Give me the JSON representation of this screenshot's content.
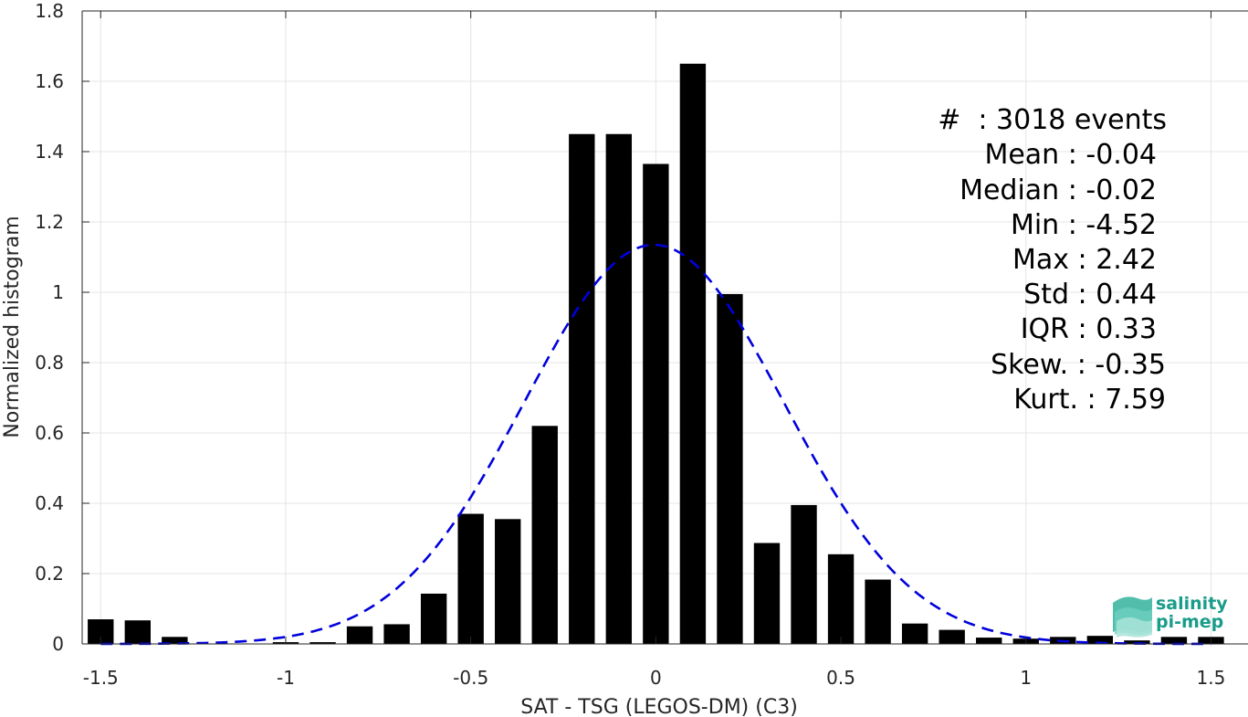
{
  "chart_data": {
    "type": "bar",
    "xlabel": "SAT - TSG (LEGOS-DM) (C3)",
    "ylabel": "Normalized histogram",
    "xlim": [
      -1.55,
      1.6
    ],
    "ylim": [
      0,
      1.8
    ],
    "x_ticks": [
      -1.5,
      -1,
      -0.5,
      0,
      0.5,
      1,
      1.5
    ],
    "x_tick_labels": [
      "-1.5",
      "-1",
      "-0.5",
      "0",
      "0.5",
      "1",
      "1.5"
    ],
    "y_ticks": [
      0,
      0.2,
      0.4,
      0.6,
      0.8,
      1,
      1.2,
      1.4,
      1.6,
      1.8
    ],
    "y_tick_labels": [
      "0",
      "0.2",
      "0.4",
      "0.6",
      "0.8",
      "1",
      "1.2",
      "1.4",
      "1.6",
      "1.8"
    ],
    "grid": true,
    "bar_width": 0.07,
    "bars": {
      "color": "#000000",
      "x": [
        -1.5,
        -1.4,
        -1.3,
        -1.2,
        -1.1,
        -1.0,
        -0.9,
        -0.8,
        -0.7,
        -0.6,
        -0.5,
        -0.4,
        -0.3,
        -0.2,
        -0.1,
        0.0,
        0.1,
        0.2,
        0.3,
        0.4,
        0.5,
        0.6,
        0.7,
        0.8,
        0.9,
        1.0,
        1.1,
        1.2,
        1.3,
        1.4,
        1.5
      ],
      "values": [
        0.07,
        0.067,
        0.02,
        0.0,
        0.0,
        0.005,
        0.005,
        0.05,
        0.056,
        0.143,
        0.37,
        0.355,
        0.62,
        1.45,
        1.45,
        1.365,
        1.65,
        0.995,
        0.287,
        0.395,
        0.255,
        0.183,
        0.058,
        0.04,
        0.018,
        0.015,
        0.02,
        0.023,
        0.01,
        0.02,
        0.02
      ]
    },
    "fit_curve": {
      "color": "#0000dd",
      "style": "dashed",
      "mean": -0.005,
      "std": 0.35,
      "peak": 1.135,
      "x_range": [
        -1.5,
        1.5
      ]
    }
  },
  "stats": {
    "line1": "#  : 3018 events",
    "line2": "Mean : -0.04",
    "line3": "Median : -0.02",
    "line4": "Min : -4.52",
    "line5": "Max : 2.42",
    "line6": "Std : 0.44",
    "line7": "IQR : 0.33",
    "line8": "Skew. : -0.35",
    "line9": "Kurt. : 7.59"
  },
  "logo": {
    "line1": "salinity",
    "line2": "pi-mep",
    "color": "#1a9c8a"
  }
}
